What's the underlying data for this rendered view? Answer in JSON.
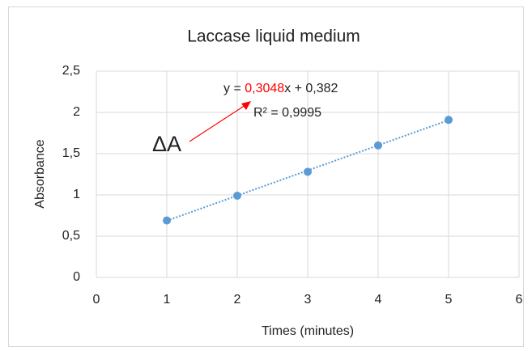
{
  "chart_data": {
    "type": "scatter",
    "title": "Laccase liquid medium",
    "x_label": "Times (minutes)",
    "y_label": "Absorbance",
    "series": [
      {
        "name": "Absorbance",
        "color": "#5b9bd5",
        "x": [
          1,
          2,
          3,
          4,
          5
        ],
        "values": [
          0.69,
          0.99,
          1.28,
          1.6,
          1.91
        ]
      }
    ],
    "xlim": [
      0,
      6
    ],
    "xticks": [
      0,
      1,
      2,
      3,
      4,
      5,
      6
    ],
    "ylim": [
      0,
      2.5
    ],
    "yticks": [
      0,
      {
        "value": 0.5,
        "label": "0,5"
      },
      1,
      {
        "value": 1.5,
        "label": "1,5"
      },
      2,
      {
        "value": 2.5,
        "label": "2,5"
      }
    ],
    "grid": true,
    "trendline": {
      "prefix": "y = ",
      "slope": {
        "value": 0.3048,
        "label": "0,3048"
      },
      "middle": "x + ",
      "intercept": {
        "value": 0.382,
        "label": "0,382"
      },
      "r2": "R² = 0,9995",
      "slope_color": "#ff0000"
    },
    "annotation": {
      "text": "ΔA",
      "color": "#ff0000"
    }
  }
}
